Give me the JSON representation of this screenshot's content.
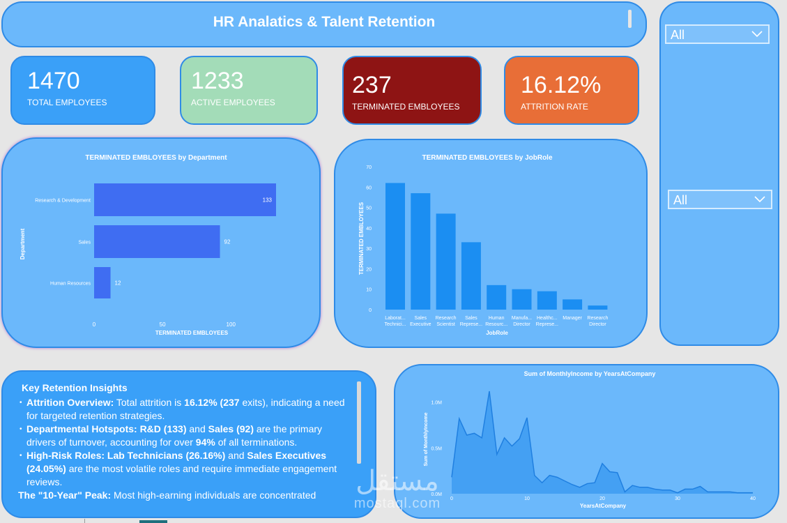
{
  "header": {
    "title": "HR Analatics & Talent Retention"
  },
  "slicers": [
    {
      "value": "All"
    },
    {
      "value": "All"
    }
  ],
  "kpis": {
    "total": {
      "value": "1470",
      "label": "TOTAL EMPLOYEES"
    },
    "active": {
      "value": "1233",
      "label": "ACTIVE EMPLOYEES"
    },
    "terminated": {
      "value": "237",
      "label": "TERMINATED EMBLOYEES"
    },
    "attrition": {
      "value": "16.12%",
      "label": "ATTRITION RATE"
    }
  },
  "insights": {
    "title": "Key Retention Insights",
    "items": [
      {
        "head": "Attrition Overview:",
        "t1": " Total attrition is ",
        "b1": "16.12% (237",
        "t2": " exits), indicating a need for targeted retention strategies."
      },
      {
        "head": "Departmental Hotspots: R&D (133)",
        "t1": " and ",
        "b1": "Sales (92)",
        "t2": " are the primary drivers of turnover, accounting for over ",
        "b2": "94%",
        "t3": " of all terminations."
      },
      {
        "head": "High-Risk Roles: Lab Technicians (26.16%)",
        "t1": " and ",
        "b1": "Sales Executives (24.05%)",
        "t2": " are the most volatile roles and require immediate engagement reviews."
      }
    ],
    "last": {
      "head": "The \"10-Year\" Peak:",
      "text": " Most high-earning individuals are concentrated"
    }
  },
  "watermark": {
    "glyph": "مستقل",
    "text": "mostaql.com"
  },
  "colors": {
    "panel": "#6bb8fb",
    "bar_dept": "#3f6df2",
    "bar_role": "#1b8ef2",
    "area": "#2f93ee"
  },
  "chart_data": [
    {
      "type": "bar",
      "orientation": "horizontal",
      "title": "TERMINATED EMBLOYEES by Department",
      "categories": [
        "Research & Development",
        "Sales",
        "Human Resources"
      ],
      "values": [
        133,
        92,
        12
      ],
      "xlabel": "TERMINATED EMBLOYEES",
      "ylabel": "Department",
      "xlim": [
        0,
        133
      ],
      "xticks": [
        0,
        50,
        100
      ]
    },
    {
      "type": "bar",
      "title": "TERMINATED EMBLOYEES by JobRole",
      "categories": [
        [
          "Laborat...",
          "Technici..."
        ],
        [
          "Sales",
          "Executive"
        ],
        [
          "Research",
          "Scientist"
        ],
        [
          "Sales",
          "Represe..."
        ],
        [
          "Human",
          "Resourc..."
        ],
        [
          "Manufa...",
          "Director"
        ],
        [
          "Healthc...",
          "Represe..."
        ],
        [
          "Manager"
        ],
        [
          "Research",
          "Director"
        ]
      ],
      "values": [
        62,
        57,
        47,
        33,
        12,
        10,
        9,
        5,
        2
      ],
      "xlabel": "JobRole",
      "ylabel": "TERMINATED EMBLOYEES",
      "ylim": [
        0,
        70
      ],
      "yticks": [
        0,
        10,
        20,
        30,
        40,
        50,
        60,
        70
      ]
    },
    {
      "type": "area",
      "title": "Sum of MonthlyIncome by YearsAtCompany",
      "xlabel": "YearsAtCompany",
      "ylabel": "Sum of MonthlyIncome",
      "xlim": [
        0,
        40
      ],
      "ylim": [
        0,
        1150000
      ],
      "xticks": [
        0,
        10,
        20,
        30,
        40
      ],
      "yticks": [
        0,
        500000,
        1000000
      ],
      "ytick_labels": [
        "0.0M",
        "0.5M",
        "1.0M"
      ],
      "x": [
        0,
        1,
        2,
        3,
        4,
        5,
        6,
        7,
        8,
        9,
        10,
        11,
        12,
        13,
        14,
        15,
        16,
        17,
        18,
        19,
        20,
        21,
        22,
        23,
        24,
        25,
        26,
        27,
        28,
        29,
        30,
        31,
        32,
        33,
        34,
        35,
        36,
        37,
        38,
        39,
        40
      ],
      "y": [
        180000,
        820000,
        640000,
        660000,
        610000,
        1120000,
        430000,
        610000,
        520000,
        600000,
        830000,
        200000,
        120000,
        200000,
        180000,
        140000,
        100000,
        70000,
        110000,
        120000,
        330000,
        240000,
        230000,
        20000,
        90000,
        70000,
        70000,
        50000,
        40000,
        40000,
        10000,
        50000,
        50000,
        80000,
        20000,
        20000,
        20000,
        20000,
        10000,
        10000,
        10000
      ]
    }
  ]
}
